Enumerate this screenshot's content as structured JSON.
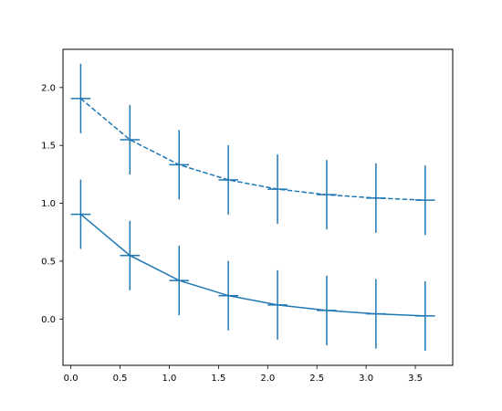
{
  "chart_data": {
    "type": "line",
    "title": "",
    "xlabel": "",
    "ylabel": "",
    "xlim": [
      -0.08,
      3.88
    ],
    "ylim": [
      -0.4,
      2.33
    ],
    "grid": false,
    "legend": "none",
    "x_ticks": [
      "0.0",
      "0.5",
      "1.0",
      "1.5",
      "2.0",
      "2.5",
      "3.0",
      "3.5"
    ],
    "y_ticks": [
      "0.0",
      "0.5",
      "1.0",
      "1.5",
      "2.0"
    ],
    "x": [
      0.1,
      0.6,
      1.1,
      1.6,
      2.1,
      2.6,
      3.1,
      3.6
    ],
    "series": [
      {
        "linestyle": "solid",
        "color": "#1f77b4",
        "values": [
          0.905,
          0.549,
          0.333,
          0.202,
          0.122,
          0.074,
          0.045,
          0.027
        ],
        "yerr": 0.3,
        "xerr": 0.1
      },
      {
        "linestyle": "dashed",
        "color": "#1f77b4",
        "values": [
          1.905,
          1.549,
          1.333,
          1.202,
          1.122,
          1.074,
          1.045,
          1.027
        ],
        "yerr": 0.3,
        "xerr": 0.1
      }
    ]
  }
}
